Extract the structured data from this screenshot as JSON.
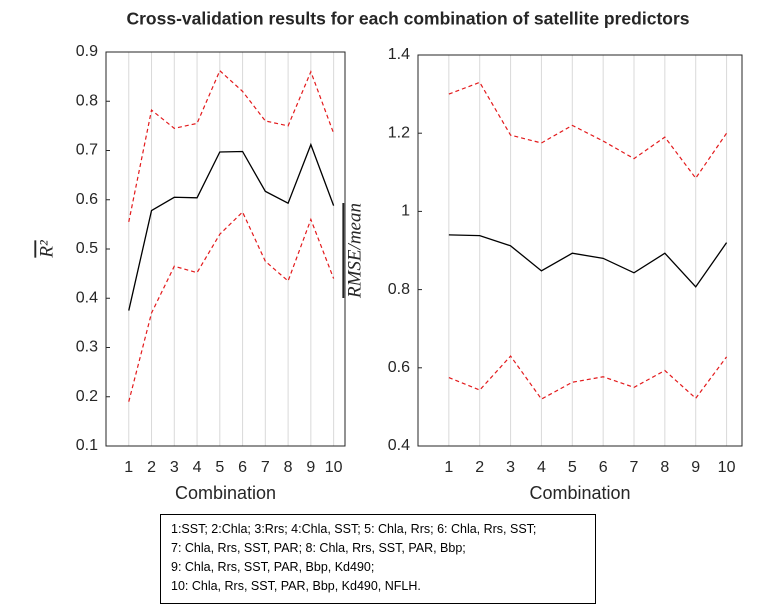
{
  "title": "Cross-validation results for each combination of satellite predictors",
  "chart_data": [
    {
      "type": "line",
      "xlabel": "Combination",
      "ylabel": "R²",
      "x": [
        1,
        2,
        3,
        4,
        5,
        6,
        7,
        8,
        9,
        10
      ],
      "xlim": [
        0,
        10.5
      ],
      "xticks": [
        1,
        2,
        3,
        4,
        5,
        6,
        7,
        8,
        9,
        10
      ],
      "ylim": [
        0.1,
        0.9
      ],
      "yticks": [
        0.1,
        0.2,
        0.3,
        0.4,
        0.5,
        0.6,
        0.7,
        0.8,
        0.9
      ],
      "grid": true,
      "series": [
        {
          "color": "#000000",
          "style": "solid",
          "values": [
            0.375,
            0.578,
            0.605,
            0.604,
            0.697,
            0.698,
            0.617,
            0.593,
            0.712,
            0.588
          ]
        },
        {
          "color": "#e31a1c",
          "style": "dashed",
          "values": [
            0.555,
            0.782,
            0.745,
            0.755,
            0.862,
            0.82,
            0.76,
            0.75,
            0.86,
            0.735
          ]
        },
        {
          "color": "#e31a1c",
          "style": "dashed",
          "values": [
            0.19,
            0.37,
            0.465,
            0.452,
            0.53,
            0.575,
            0.475,
            0.435,
            0.56,
            0.44
          ]
        }
      ]
    },
    {
      "type": "line",
      "xlabel": "Combination",
      "ylabel": "RMSE/mean",
      "x": [
        1,
        2,
        3,
        4,
        5,
        6,
        7,
        8,
        9,
        10
      ],
      "xlim": [
        0,
        10.5
      ],
      "xticks": [
        1,
        2,
        3,
        4,
        5,
        6,
        7,
        8,
        9,
        10
      ],
      "ylim": [
        0.4,
        1.4
      ],
      "yticks": [
        0.4,
        0.6,
        0.8,
        1,
        1.2,
        1.4
      ],
      "grid": true,
      "series": [
        {
          "color": "#000000",
          "style": "solid",
          "values": [
            0.94,
            0.938,
            0.912,
            0.848,
            0.893,
            0.88,
            0.843,
            0.893,
            0.807,
            0.92
          ]
        },
        {
          "color": "#e31a1c",
          "style": "dashed",
          "values": [
            1.3,
            1.33,
            1.195,
            1.175,
            1.22,
            1.18,
            1.135,
            1.19,
            1.085,
            1.2
          ]
        },
        {
          "color": "#e31a1c",
          "style": "dashed",
          "values": [
            0.575,
            0.543,
            0.63,
            0.52,
            0.563,
            0.577,
            0.55,
            0.593,
            0.522,
            0.628
          ]
        }
      ]
    }
  ],
  "note": {
    "lines": [
      "1:SST; 2:Chla; 3:Rrs; 4:Chla, SST; 5: Chla, Rrs; 6: Chla, Rrs, SST;",
      "7: Chla, Rrs, SST, PAR; 8: Chla, Rrs, SST, PAR, Bbp;",
      "9: Chla, Rrs, SST, PAR, Bbp, Kd490;",
      "10: Chla, Rrs, SST, PAR, Bbp, Kd490, NFLH."
    ]
  }
}
